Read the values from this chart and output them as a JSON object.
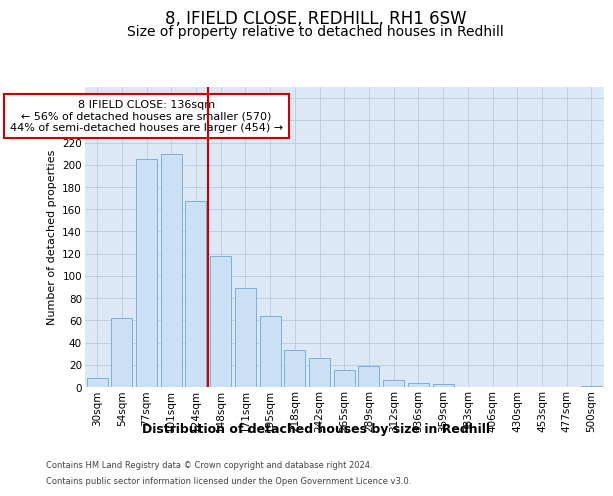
{
  "title1": "8, IFIELD CLOSE, REDHILL, RH1 6SW",
  "title2": "Size of property relative to detached houses in Redhill",
  "xlabel": "Distribution of detached houses by size in Redhill",
  "ylabel": "Number of detached properties",
  "categories": [
    "30sqm",
    "54sqm",
    "77sqm",
    "101sqm",
    "124sqm",
    "148sqm",
    "171sqm",
    "195sqm",
    "218sqm",
    "242sqm",
    "265sqm",
    "289sqm",
    "312sqm",
    "336sqm",
    "359sqm",
    "383sqm",
    "406sqm",
    "430sqm",
    "453sqm",
    "477sqm",
    "500sqm"
  ],
  "values": [
    8,
    62,
    205,
    210,
    167,
    118,
    89,
    64,
    33,
    26,
    15,
    19,
    6,
    4,
    3,
    0,
    0,
    0,
    0,
    0,
    1
  ],
  "bar_color": "#cce0f5",
  "bar_edge_color": "#7ab0d8",
  "vline_x": 4.5,
  "vline_color": "#cc0000",
  "annotation_line1": "8 IFIELD CLOSE: 136sqm",
  "annotation_line2": "← 56% of detached houses are smaller (570)",
  "annotation_line3": "44% of semi-detached houses are larger (454) →",
  "annotation_box_edgecolor": "#cc0000",
  "ylim": [
    0,
    270
  ],
  "yticks": [
    0,
    20,
    40,
    60,
    80,
    100,
    120,
    140,
    160,
    180,
    200,
    220,
    240,
    260
  ],
  "grid_color": "#b8cce0",
  "bg_color": "#dce8f5",
  "footer_line1": "Contains HM Land Registry data © Crown copyright and database right 2024.",
  "footer_line2": "Contains public sector information licensed under the Open Government Licence v3.0.",
  "title1_fontsize": 12,
  "title2_fontsize": 10,
  "xlabel_fontsize": 9,
  "ylabel_fontsize": 8,
  "tick_fontsize": 7.5,
  "annotation_fontsize": 8,
  "footer_fontsize": 6
}
